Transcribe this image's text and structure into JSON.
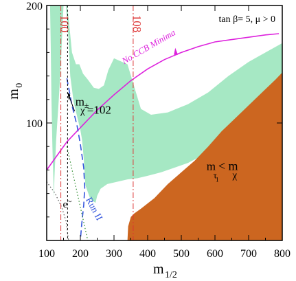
{
  "chart_data": {
    "type": "area",
    "title": "",
    "xlabel": "m",
    "xlabel_sub": "1/2",
    "ylabel": "m",
    "ylabel_sub": "0",
    "xlim": [
      100,
      800
    ],
    "ylim": [
      0,
      200
    ],
    "x_ticks": [
      100,
      200,
      300,
      400,
      500,
      600,
      700,
      800
    ],
    "y_ticks": [
      100,
      200
    ],
    "grid": false,
    "params_label": "tan  β= 5,  μ > 0",
    "colors": {
      "allowed_band": "#a6e8c4",
      "stau_lsp_region": "#cc6620",
      "ccb_curve": "#dd22dd",
      "higgs_lines": "#dd3333",
      "chargino_line": "#000000",
      "run2_curve": "#3355dd",
      "selectron_curve": "#555555",
      "green_dotted": "#2a8a2a"
    },
    "series": [
      {
        "name": "No CCB Minima",
        "style": "solid",
        "points": [
          [
            100,
            60
          ],
          [
            130,
            72
          ],
          [
            160,
            84
          ],
          [
            200,
            96
          ],
          [
            250,
            111
          ],
          [
            300,
            124
          ],
          [
            350,
            136
          ],
          [
            400,
            146
          ],
          [
            450,
            154
          ],
          [
            500,
            160
          ],
          [
            550,
            165
          ],
          [
            600,
            169
          ],
          [
            650,
            171
          ],
          [
            700,
            173
          ],
          [
            750,
            175
          ],
          [
            790,
            176
          ]
        ]
      },
      {
        "name": "Run II",
        "style": "dashed",
        "points": [
          [
            160,
            138
          ],
          [
            175,
            115
          ],
          [
            190,
            98
          ],
          [
            200,
            82
          ],
          [
            210,
            62
          ],
          [
            213,
            45
          ],
          [
            210,
            30
          ],
          [
            204,
            14
          ],
          [
            200,
            0
          ]
        ]
      },
      {
        "name": "chargino mass 102",
        "style": "dashed-thin",
        "points": [
          [
            162,
            200
          ],
          [
            162,
            0
          ]
        ]
      },
      {
        "name": "selectron",
        "style": "dotted",
        "points": [
          [
            100,
            50
          ],
          [
            125,
            40
          ],
          [
            145,
            28
          ],
          [
            158,
            16
          ],
          [
            165,
            0
          ]
        ]
      },
      {
        "name": "higgs 100",
        "style": "dash-dot",
        "points": [
          [
            142,
            200
          ],
          [
            142,
            0
          ]
        ]
      },
      {
        "name": "higgs 108",
        "style": "dash-dot",
        "points": [
          [
            357,
            200
          ],
          [
            357,
            0
          ]
        ]
      }
    ],
    "regions": [
      {
        "name": "cosmologically preferred band",
        "fill": "green",
        "boundary": [
          [
            110,
            200
          ],
          [
            112,
            165
          ],
          [
            114,
            120
          ],
          [
            117,
            80
          ],
          [
            120,
            50
          ],
          [
            121,
            36
          ],
          [
            123,
            54
          ],
          [
            128,
            85
          ],
          [
            136,
            120
          ],
          [
            142,
            150
          ],
          [
            146,
            175
          ],
          [
            150,
            200
          ],
          [
            160,
            200
          ],
          [
            165,
            190
          ],
          [
            175,
            160
          ],
          [
            187,
            150
          ],
          [
            197,
            150
          ],
          [
            208,
            142
          ],
          [
            222,
            137
          ],
          [
            240,
            130
          ],
          [
            255,
            129
          ],
          [
            270,
            132
          ],
          [
            283,
            145
          ],
          [
            300,
            155
          ],
          [
            340,
            150
          ],
          [
            380,
            112
          ],
          [
            410,
            107
          ],
          [
            460,
            109
          ],
          [
            520,
            116
          ],
          [
            580,
            126
          ],
          [
            640,
            140
          ],
          [
            700,
            152
          ],
          [
            750,
            160
          ],
          [
            800,
            168
          ],
          [
            800,
            142
          ],
          [
            780,
            133
          ],
          [
            740,
            118
          ],
          [
            700,
            104
          ],
          [
            650,
            92
          ],
          [
            600,
            80
          ],
          [
            560,
            72
          ],
          [
            520,
            66
          ],
          [
            480,
            62
          ],
          [
            440,
            58
          ],
          [
            400,
            55
          ],
          [
            370,
            53
          ],
          [
            340,
            52
          ],
          [
            310,
            50
          ],
          [
            280,
            48
          ],
          [
            260,
            44
          ],
          [
            250,
            38
          ],
          [
            245,
            32
          ],
          [
            230,
            35
          ],
          [
            215,
            47
          ],
          [
            210,
            70
          ],
          [
            205,
            86
          ],
          [
            200,
            94
          ],
          [
            180,
            118
          ],
          [
            170,
            140
          ],
          [
            166,
            165
          ],
          [
            163,
            180
          ],
          [
            160,
            190
          ],
          [
            157,
            200
          ]
        ]
      },
      {
        "name": "stau LSP excluded region",
        "fill": "orange",
        "boundary": [
          [
            340,
            0
          ],
          [
            342,
            12
          ],
          [
            350,
            20
          ],
          [
            360,
            23
          ],
          [
            380,
            27
          ],
          [
            420,
            36
          ],
          [
            460,
            48
          ],
          [
            500,
            58
          ],
          [
            540,
            68
          ],
          [
            580,
            80
          ],
          [
            620,
            93
          ],
          [
            660,
            104
          ],
          [
            700,
            115
          ],
          [
            740,
            126
          ],
          [
            780,
            137
          ],
          [
            800,
            143
          ],
          [
            800,
            0
          ]
        ]
      }
    ],
    "annotations": [
      {
        "text": "100",
        "x": 142,
        "y": 192
      },
      {
        "text": "108",
        "x": 357,
        "y": 192
      },
      {
        "text": "No CCB Minima",
        "x": 330,
        "y": 150
      },
      {
        "text": "m",
        "x": 185,
        "y": 115
      },
      {
        "text": "χ",
        "x": 200,
        "y": 108
      },
      {
        "text": "±",
        "x": 212,
        "y": 113
      },
      {
        "text": "=102",
        "x": 220,
        "y": 108
      },
      {
        "text": "Run II",
        "x": 216,
        "y": 35
      },
      {
        "text": "e",
        "x": 148,
        "y": 28
      },
      {
        "text": "~",
        "x": 161,
        "y": 31
      },
      {
        "text": "m",
        "x": 575,
        "y": 60
      },
      {
        "text": "τ",
        "x": 595,
        "y": 53
      },
      {
        "text": "1",
        "x": 602,
        "y": 50
      },
      {
        "text": "< m",
        "x": 610,
        "y": 60
      },
      {
        "text": "χ",
        "x": 652,
        "y": 53
      }
    ]
  }
}
